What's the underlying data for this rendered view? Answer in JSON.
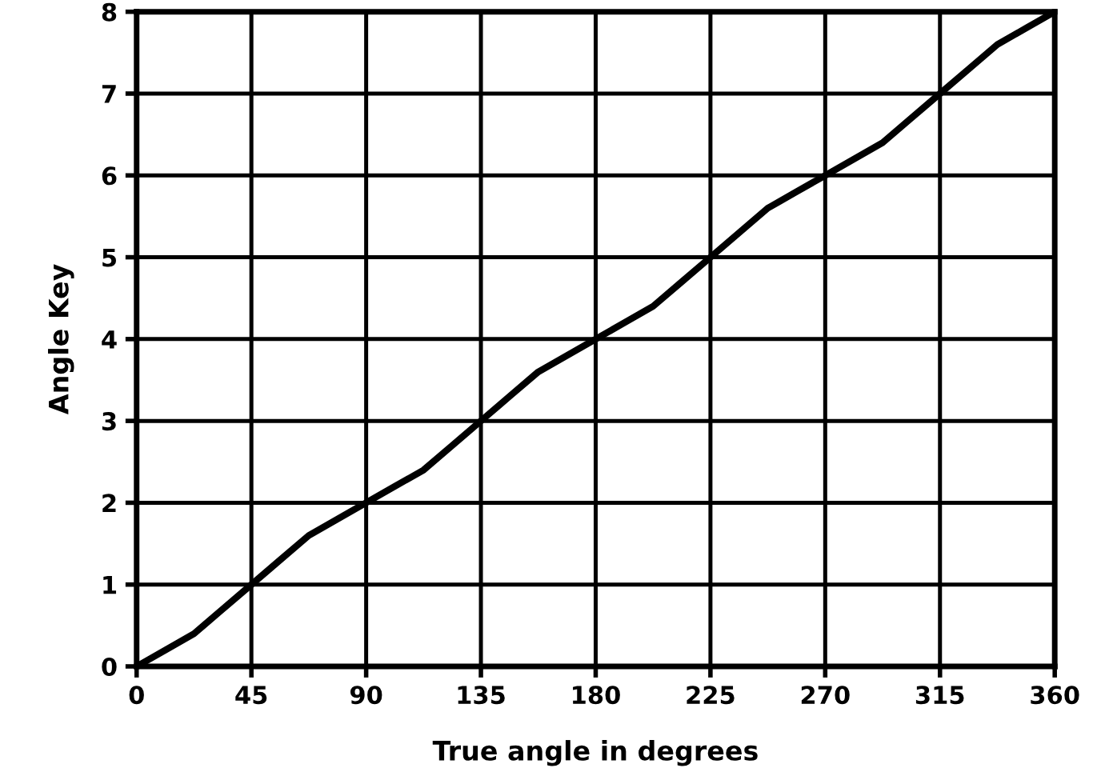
{
  "chart_data": {
    "type": "line",
    "xlabel": "True angle in degrees",
    "ylabel": "Angle Key",
    "series": [
      {
        "color": "#000000",
        "x": [
          0,
          11.25,
          22.5,
          33.75,
          45,
          56.25,
          67.5,
          78.75,
          90,
          101.25,
          112.5,
          123.75,
          135,
          146.25,
          157.5,
          168.75,
          180,
          191.25,
          202.5,
          213.75,
          225,
          236.25,
          247.5,
          258.75,
          270,
          281.25,
          292.5,
          303.75,
          315,
          326.25,
          337.5,
          348.75,
          360
        ],
        "values": [
          0,
          0.2,
          0.4,
          0.7,
          1,
          1.3,
          1.6,
          1.8,
          2,
          2.2,
          2.4,
          2.7,
          3,
          3.3,
          3.6,
          3.8,
          4,
          4.2,
          4.4,
          4.7,
          5,
          5.3,
          5.6,
          5.8,
          6,
          6.2,
          6.4,
          6.7,
          7,
          7.3,
          7.6,
          7.8,
          8
        ]
      }
    ],
    "xlim": [
      0,
      360
    ],
    "xticks": [
      0,
      45,
      90,
      135,
      180,
      225,
      270,
      315,
      360
    ],
    "ylim": [
      0,
      8
    ],
    "yticks": [
      0,
      1,
      2,
      3,
      4,
      5,
      6,
      7,
      8
    ],
    "grid": true,
    "marker": "none",
    "line_style": "solid",
    "legend": false
  }
}
